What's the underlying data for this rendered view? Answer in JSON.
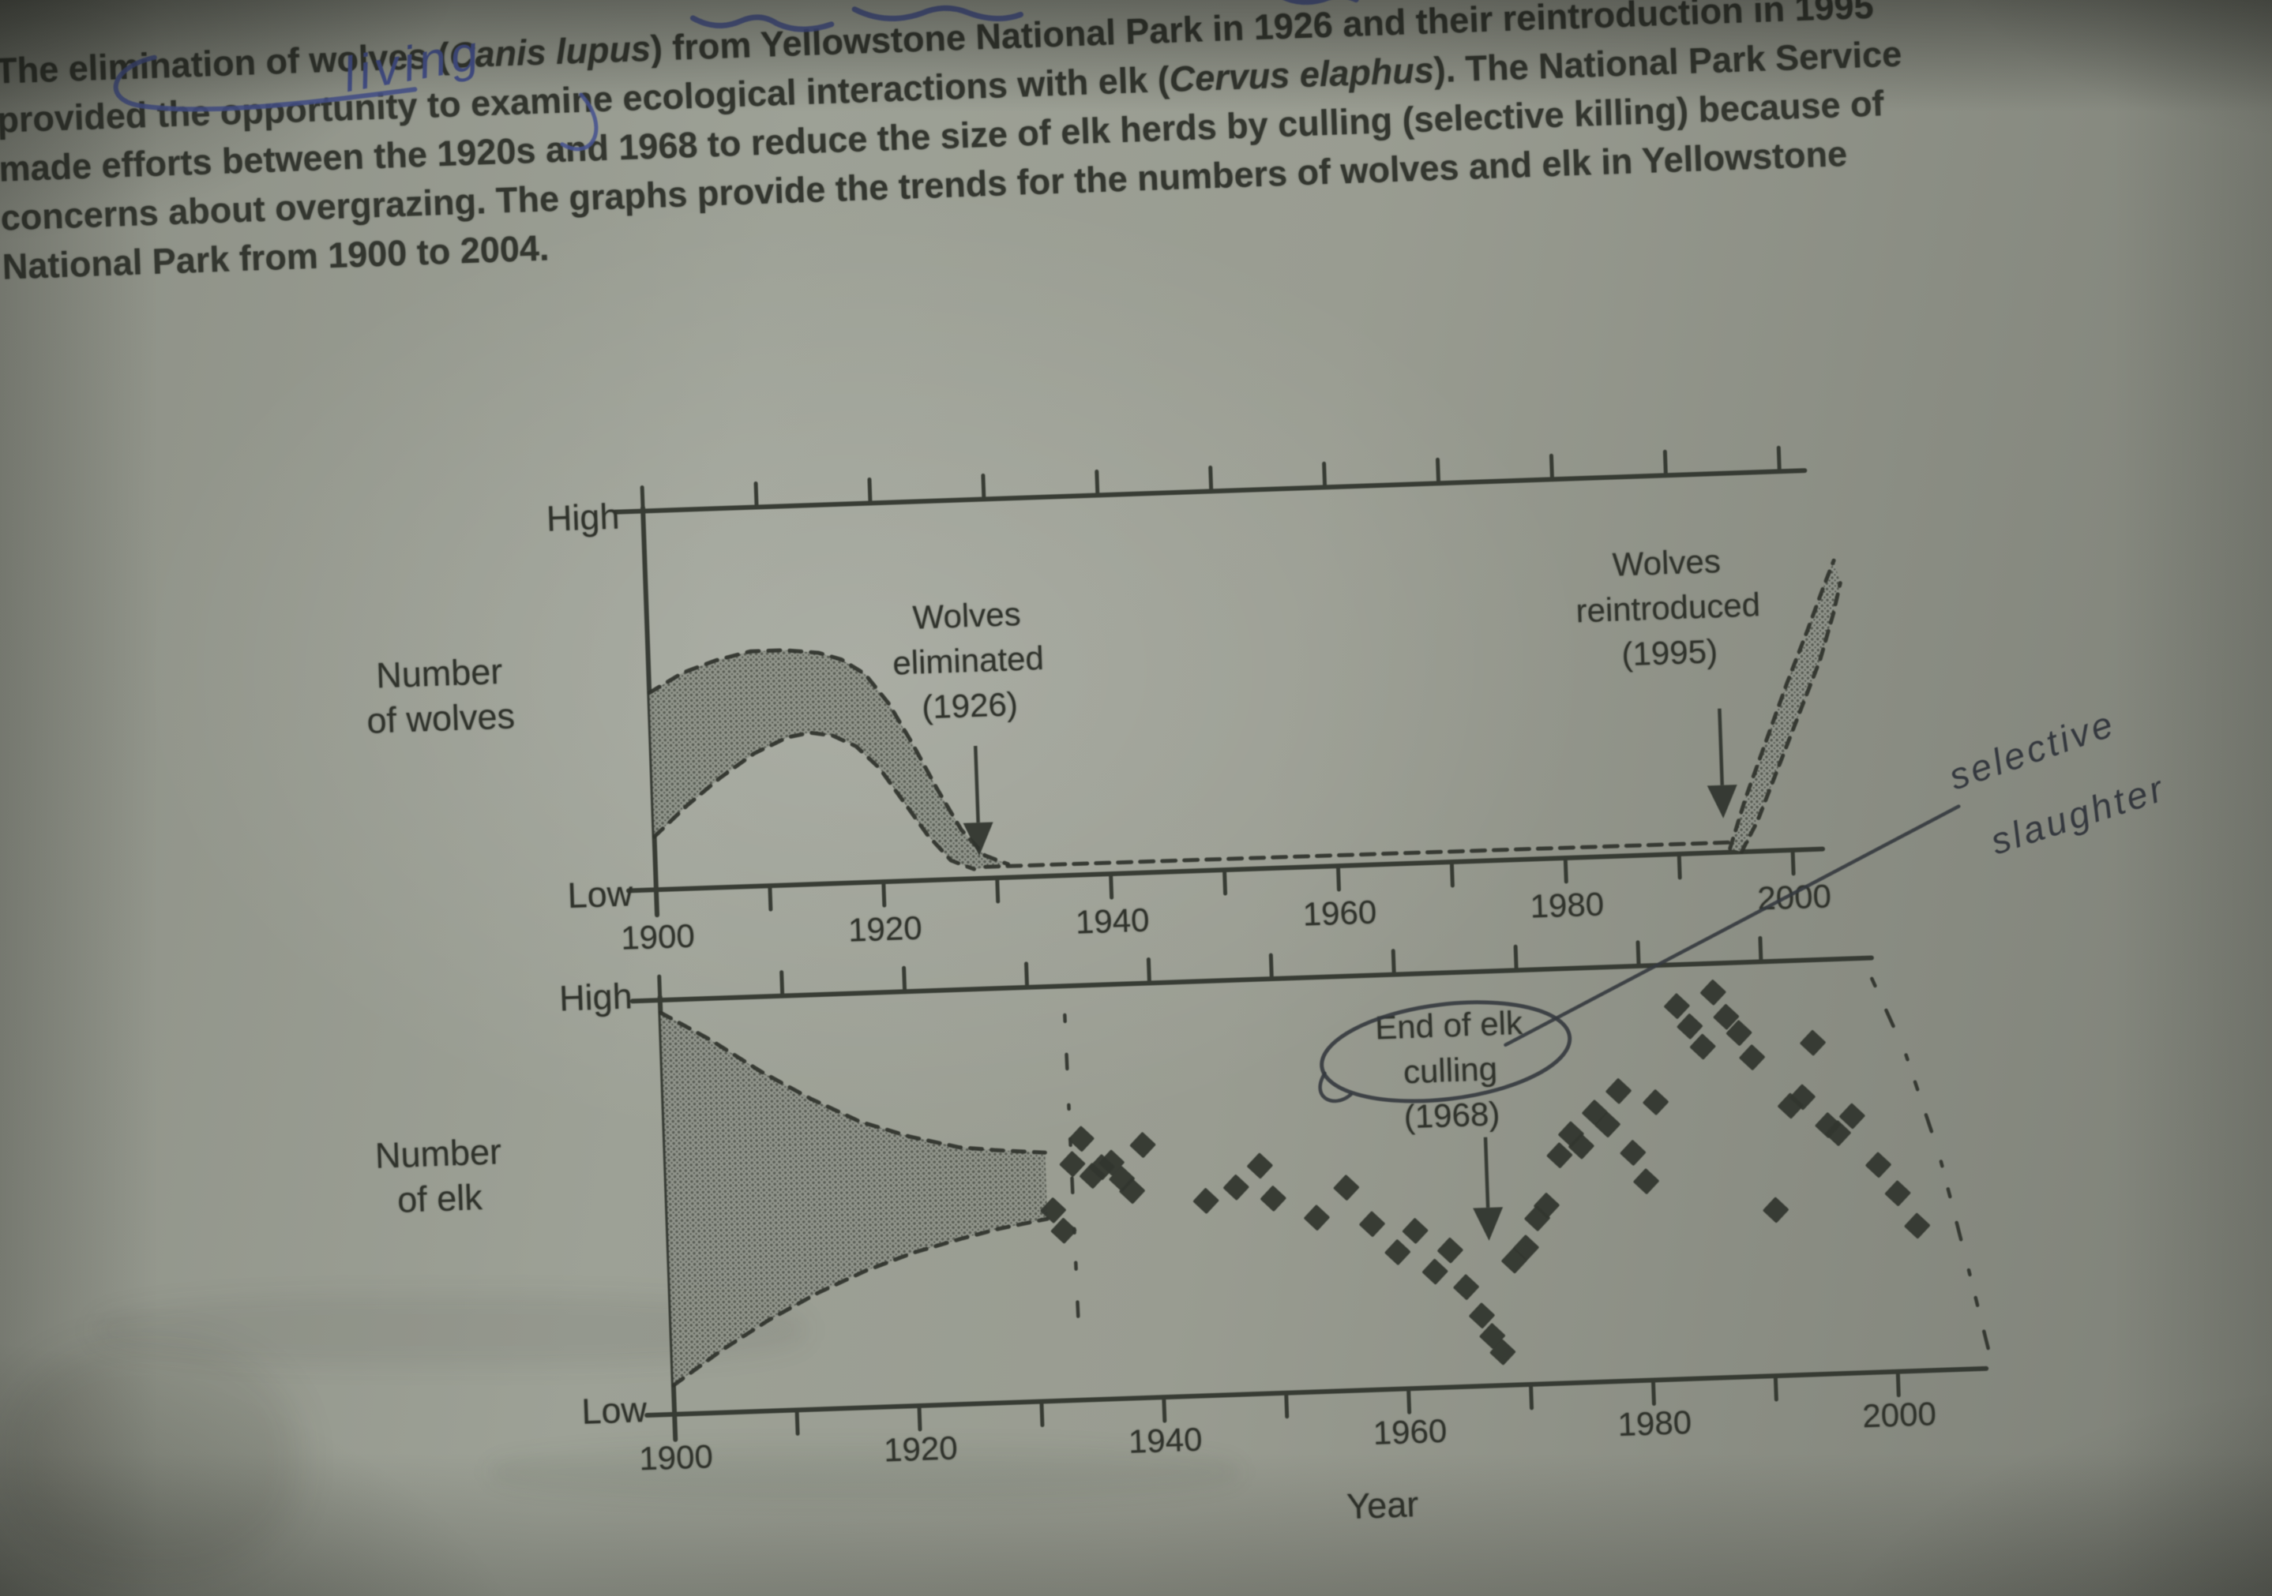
{
  "palette": {
    "paper": "#999c91",
    "ink": "#2f332c",
    "band_fill": "#8f938a",
    "band_dot": "#545850",
    "point_fill": "#33372f",
    "blue_ink": "#46528e",
    "pen_ink": "#34383e"
  },
  "paragraph": {
    "lines": [
      [
        {
          "text": "The elimination of wolves (",
          "italic": false
        },
        {
          "text": "Canis lupus",
          "italic": true
        },
        {
          "text": ") from Yellowstone National Park in 1926 and their reintroduction in 1995",
          "italic": false
        }
      ],
      [
        {
          "text": "provided the opportunity to examine ecological interactions with elk (",
          "italic": false
        },
        {
          "text": "Cervus elaphus",
          "italic": true
        },
        {
          "text": "). The National Park Service",
          "italic": false
        }
      ],
      [
        {
          "text": "made efforts between the 1920s and 1968 to reduce the size of elk herds by culling (selective killing) because of",
          "italic": false
        }
      ],
      [
        {
          "text": "concerns about overgrazing.  The graphs provide the trends for the numbers of wolves and elk in Yellowstone",
          "italic": false
        }
      ],
      [
        {
          "text": "National Park from 1900 to 2004.",
          "italic": false
        }
      ]
    ]
  },
  "handwriting": {
    "inserted_word": "living",
    "margin_note": [
      "selective",
      "slaughter"
    ],
    "circled_word": "culling"
  },
  "chart_data": [
    {
      "type": "area",
      "id": "wolves",
      "ylabel_lines": [
        "Number",
        "of wolves"
      ],
      "ytick_labels": [
        "High",
        "Low"
      ],
      "xtick_labels": [
        "1900",
        "1920",
        "1940",
        "1960",
        "1980",
        "2000"
      ],
      "xticks_minor_every": 10,
      "xlim": [
        1900,
        2004
      ],
      "y_units": "relative level (0 = Low, 100 = High)",
      "grid": false,
      "band": {
        "name": "wolf population range 1900-1931",
        "upper": [
          [
            1900,
            52
          ],
          [
            1903,
            57
          ],
          [
            1906,
            60
          ],
          [
            1909,
            62
          ],
          [
            1912,
            62
          ],
          [
            1915,
            61
          ],
          [
            1917,
            59
          ],
          [
            1919,
            55
          ],
          [
            1921,
            47
          ],
          [
            1923,
            36
          ],
          [
            1925,
            24
          ],
          [
            1927,
            13
          ],
          [
            1929,
            6
          ],
          [
            1931,
            3.5
          ]
        ],
        "lower": [
          [
            1900,
            14
          ],
          [
            1903,
            22
          ],
          [
            1906,
            29
          ],
          [
            1909,
            35
          ],
          [
            1912,
            39
          ],
          [
            1914,
            40
          ],
          [
            1916,
            39
          ],
          [
            1918,
            36
          ],
          [
            1920,
            30
          ],
          [
            1922,
            21
          ],
          [
            1924,
            12
          ],
          [
            1926,
            5
          ],
          [
            1928,
            2.5
          ]
        ]
      },
      "absent_line": {
        "name": "wolves absent (near zero)",
        "x": [
          1929,
          1996
        ],
        "level": 3
      },
      "reintroduction_band": {
        "name": "wolf population after reintroduction",
        "upper": [
          [
            1994.5,
            1
          ],
          [
            1996,
            14
          ],
          [
            1998,
            29
          ],
          [
            2000,
            44
          ],
          [
            2002,
            58
          ],
          [
            2003.5,
            69
          ],
          [
            2004.5,
            76
          ]
        ],
        "lower": [
          [
            1995.5,
            0
          ],
          [
            1997,
            8
          ],
          [
            1999,
            22
          ],
          [
            2001,
            36
          ],
          [
            2003,
            50
          ],
          [
            2004.3,
            62
          ],
          [
            2005,
            70
          ]
        ]
      },
      "annotations": [
        {
          "lines": [
            "Wolves",
            "eliminated",
            "(1926)"
          ],
          "arrow_x": 1928.5,
          "arrow_from_level": 35,
          "arrow_to_level": 6
        },
        {
          "lines": [
            "Wolves",
            "reintroduced",
            "(1995)"
          ],
          "arrow_x": 1994,
          "arrow_from_level": 38,
          "arrow_to_level": 9
        }
      ]
    },
    {
      "type": "area+scatter",
      "id": "elk",
      "ylabel_lines": [
        "Number",
        "of elk"
      ],
      "ytick_labels": [
        "High",
        "Low"
      ],
      "xtick_labels": [
        "1900",
        "1920",
        "1940",
        "1960",
        "1980",
        "2000"
      ],
      "xticks_minor_every": 10,
      "xlabel": "Year",
      "xlim": [
        1900,
        2007
      ],
      "y_units": "relative level (0 = Low, 100 = High)",
      "grid": false,
      "band": {
        "name": "elk population range 1900-1931",
        "upper": [
          [
            1900,
            97
          ],
          [
            1904,
            90
          ],
          [
            1908,
            82
          ],
          [
            1912,
            75
          ],
          [
            1916,
            69
          ],
          [
            1920,
            65
          ],
          [
            1924,
            62
          ],
          [
            1927,
            61
          ],
          [
            1931,
            60
          ]
        ],
        "lower": [
          [
            1900,
            7
          ],
          [
            1904,
            15
          ],
          [
            1908,
            22
          ],
          [
            1912,
            28
          ],
          [
            1916,
            33
          ],
          [
            1920,
            37
          ],
          [
            1924,
            40
          ],
          [
            1927,
            42
          ],
          [
            1931,
            44
          ]
        ]
      },
      "band_end_line": {
        "x": 1933,
        "from_level": 13,
        "to_level": 93
      },
      "points": [
        [
          1931.5,
          46
        ],
        [
          1932.3,
          41
        ],
        [
          1933.2,
          57
        ],
        [
          1934,
          63
        ],
        [
          1934.8,
          54
        ],
        [
          1935.6,
          56
        ],
        [
          1936.4,
          57
        ],
        [
          1937.2,
          53
        ],
        [
          1938,
          50
        ],
        [
          1939,
          61
        ],
        [
          1944,
          47
        ],
        [
          1946.5,
          50
        ],
        [
          1948.5,
          55
        ],
        [
          1949.5,
          47
        ],
        [
          1953,
          42
        ],
        [
          1955.5,
          49
        ],
        [
          1957.5,
          40
        ],
        [
          1959.5,
          33
        ],
        [
          1961,
          38
        ],
        [
          1962.5,
          28
        ],
        [
          1963.8,
          33
        ],
        [
          1965,
          24
        ],
        [
          1966.2,
          17
        ],
        [
          1967,
          12
        ],
        [
          1967.8,
          8
        ],
        [
          1969,
          30
        ],
        [
          1970,
          33
        ],
        [
          1971,
          40
        ],
        [
          1971.8,
          43
        ],
        [
          1973,
          55
        ],
        [
          1974,
          60
        ],
        [
          1974.8,
          57
        ],
        [
          1976,
          65
        ],
        [
          1977,
          62
        ],
        [
          1978,
          70
        ],
        [
          1979,
          55
        ],
        [
          1980,
          48
        ],
        [
          1981,
          67
        ],
        [
          1983,
          90
        ],
        [
          1984,
          85
        ],
        [
          1985,
          80
        ],
        [
          1986,
          93
        ],
        [
          1987,
          87
        ],
        [
          1988,
          83
        ],
        [
          1989,
          77
        ],
        [
          1990.5,
          40
        ],
        [
          1992,
          65
        ],
        [
          1993,
          67
        ],
        [
          1994,
          80
        ],
        [
          1995,
          60
        ],
        [
          1995.8,
          58
        ],
        [
          1997,
          62
        ],
        [
          1999,
          50
        ],
        [
          2000.5,
          43
        ],
        [
          2002,
          35
        ]
      ],
      "data_end_boundary": [
        [
          1999,
          95
        ],
        [
          2001.5,
          77
        ],
        [
          2004,
          52
        ],
        [
          2006,
          25
        ],
        [
          2007.5,
          4
        ]
      ],
      "annotations": [
        {
          "lines": [
            "End of elk",
            "culling",
            "(1968)"
          ],
          "arrow_x": 1967,
          "arrow_from_level": 60,
          "arrow_to_level": 35
        }
      ]
    }
  ]
}
